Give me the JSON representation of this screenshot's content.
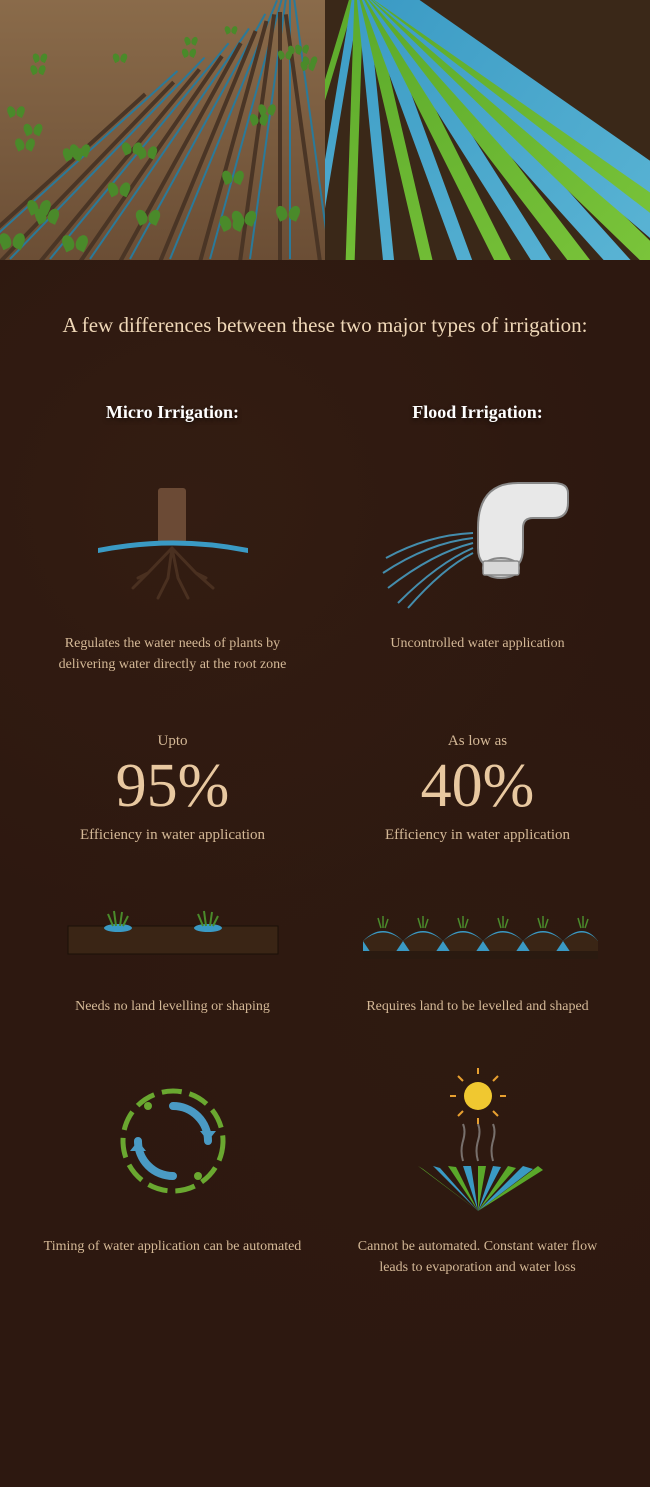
{
  "intro": "A few differences between these two major types of irrigation:",
  "colors": {
    "background": "#2d1810",
    "text_light": "#f0d8b8",
    "text_muted": "#d4b896",
    "stat_color": "#e8c8a0",
    "white": "#ffffff",
    "water_blue": "#3a9ac4",
    "plant_green": "#4a8a2a",
    "soil_brown": "#6b4e35",
    "sun_yellow": "#f0c830",
    "cycle_green": "#6aa830",
    "cycle_blue": "#4a9ac4"
  },
  "micro": {
    "title": "Micro Irrigation:",
    "point1": "Regulates the water needs of plants by delivering water directly at the root zone",
    "stat_pre": "Upto",
    "stat_val": "95%",
    "stat_post": "Efficiency in water application",
    "point2": "Needs no land levelling or shaping",
    "point3": "Timing of water application can be automated"
  },
  "flood": {
    "title": "Flood Irrigation:",
    "point1": "Uncontrolled water application",
    "stat_pre": "As low as",
    "stat_val": "40%",
    "stat_post": "Efficiency in water application",
    "point2": "Requires land to be levelled and shaped",
    "point3": "Cannot be automated. Constant water flow leads to evaporation and water loss"
  },
  "hero": {
    "left_type": "drip-field",
    "right_type": "flood-rows",
    "furrow_count": 9,
    "plant_rows": 6,
    "flood_row_count": 12
  }
}
